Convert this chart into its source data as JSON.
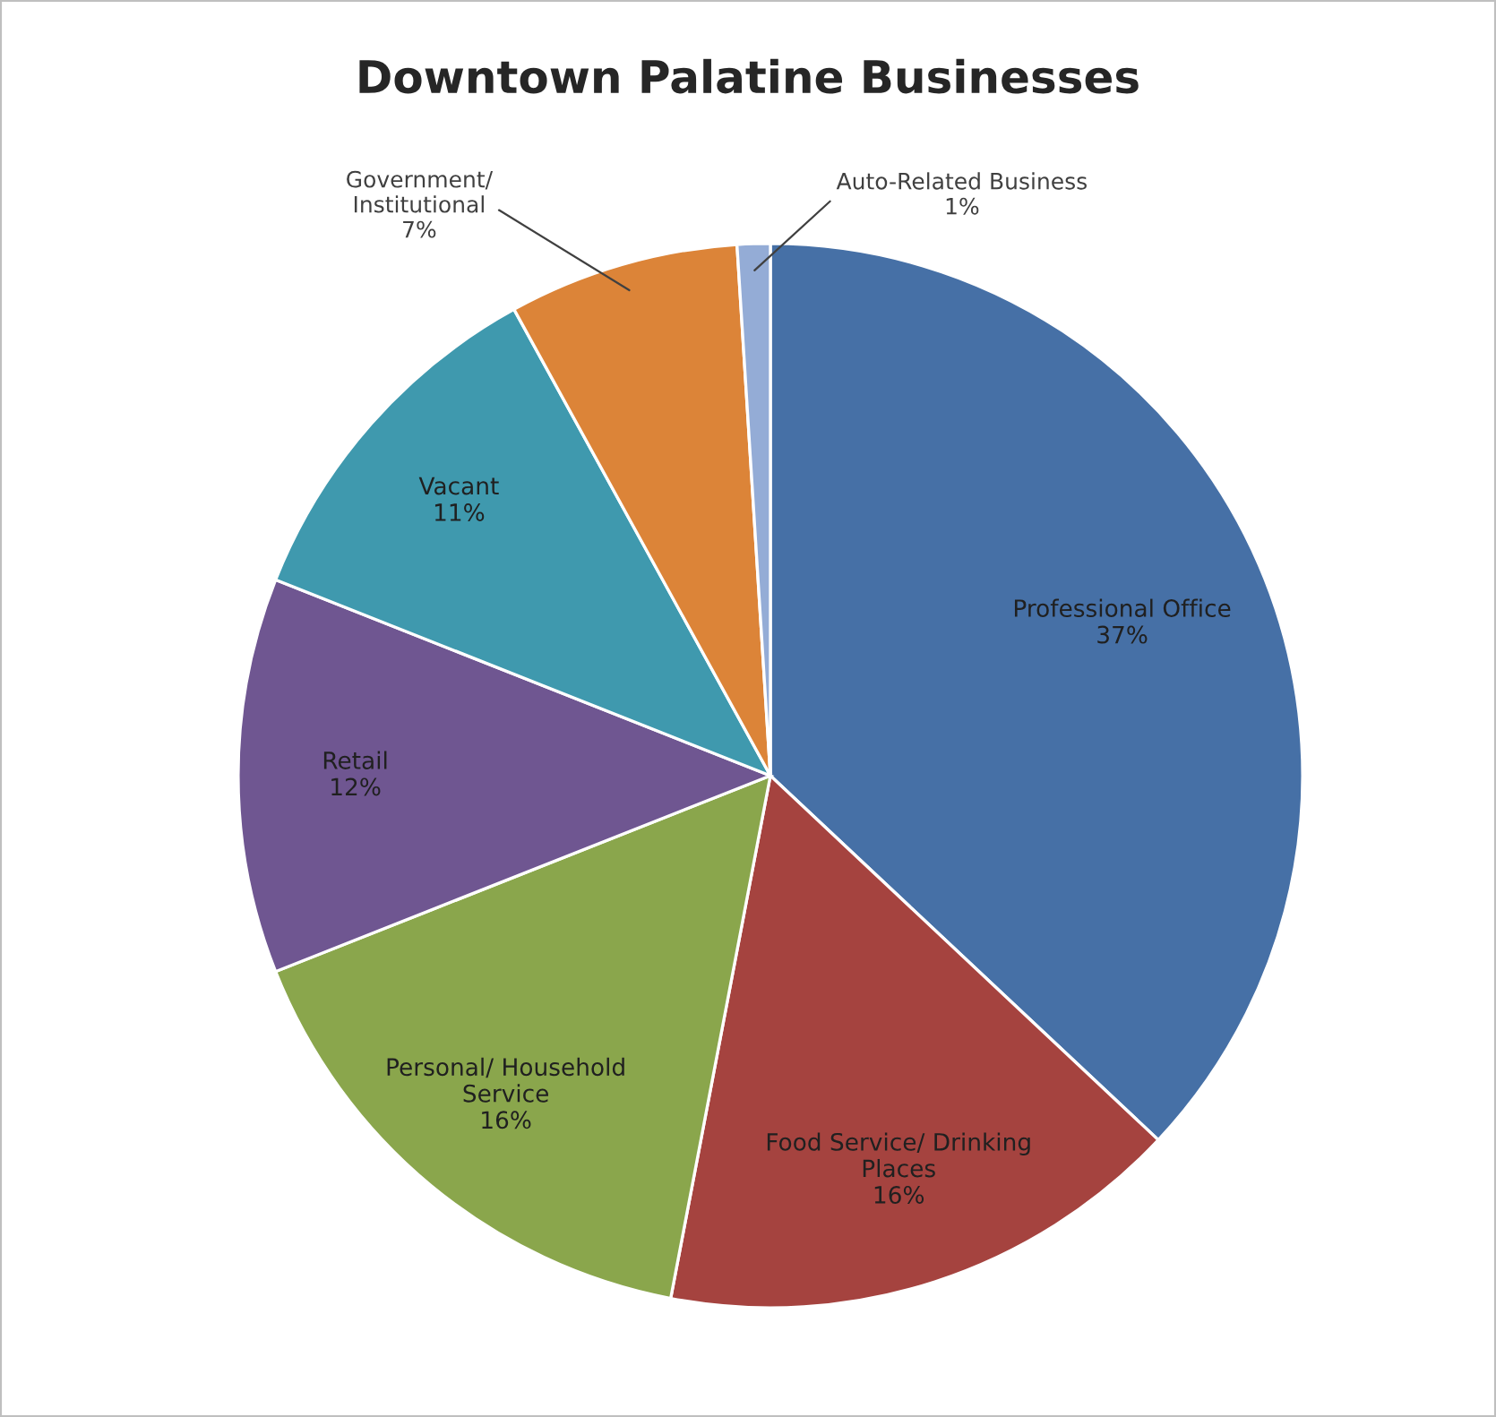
{
  "chart_data": {
    "type": "pie",
    "title": "Downtown Palatine Businesses",
    "categories": [
      "Professional Office",
      "Food Service/ Drinking\nPlaces",
      "Personal/ Household\nService",
      "Retail",
      "Vacant",
      "Government/\nInstitutional",
      "Auto-Related Business"
    ],
    "values": [
      37,
      16,
      16,
      12,
      11,
      7,
      1
    ],
    "value_labels": [
      "37%",
      "16%",
      "16%",
      "12%",
      "11%",
      "7%",
      "1%"
    ],
    "colors": [
      "#4670a6",
      "#a5433f",
      "#8aa64c",
      "#6f5691",
      "#3f99ae",
      "#dc8438",
      "#94acd6"
    ],
    "legend": false
  }
}
